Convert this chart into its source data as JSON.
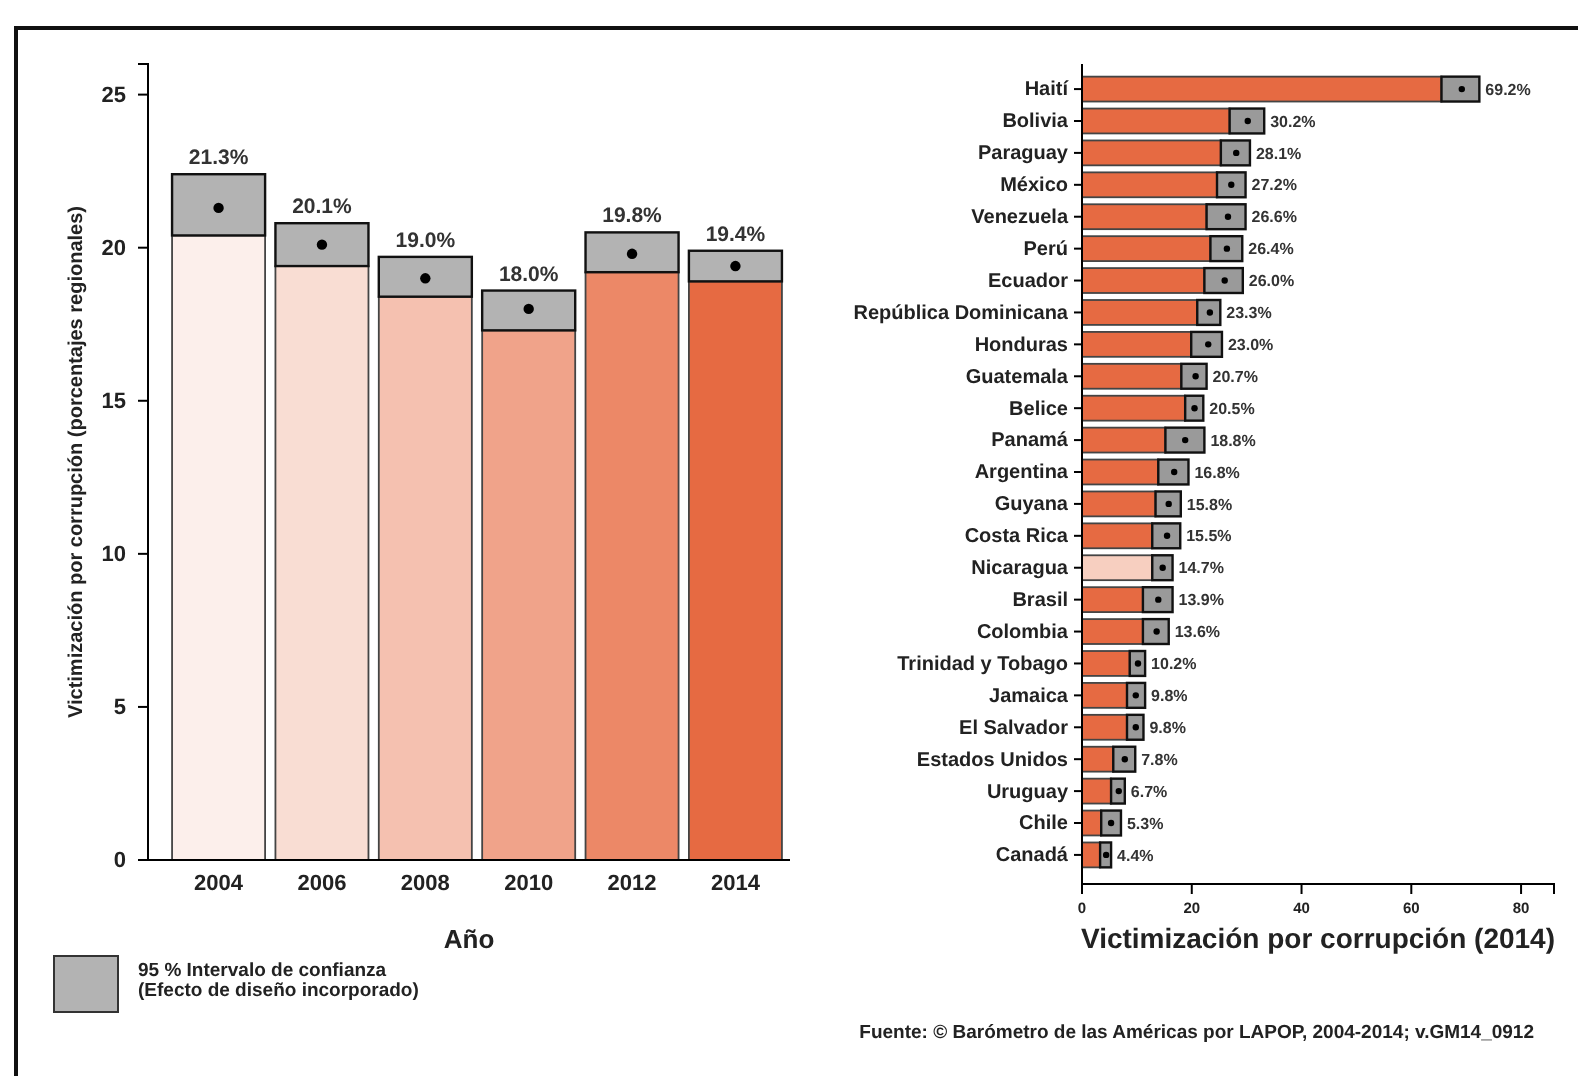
{
  "chart_data": [
    {
      "type": "bar",
      "stacked": true,
      "xlabel": "Año",
      "ylabel": "Victimización por corrupción (porcentajes regionales)",
      "categories": [
        "2004",
        "2006",
        "2008",
        "2010",
        "2012",
        "2014"
      ],
      "series": [
        {
          "colors": [
            "#fcefeb",
            "#f9ddd3",
            "#f5c1b0",
            "#f0a38a",
            "#ec8867",
            "#e66a42"
          ],
          "values": [
            20.4,
            19.4,
            18.4,
            17.3,
            19.2,
            18.9
          ]
        },
        {
          "name": "95 % Intervalo de confianza\n(Efecto de diseño incorporado)",
          "color": "#b3b3b3",
          "values": [
            2.0,
            1.4,
            1.3,
            1.3,
            1.3,
            1.0
          ]
        },
        {
          "type": "scatter",
          "color": "#000000",
          "values": [
            21.3,
            20.1,
            19.0,
            18.0,
            19.8,
            19.4
          ],
          "value_labels": [
            "21.3%",
            "20.1%",
            "19.0%",
            "18.0%",
            "19.8%",
            "19.4%"
          ]
        }
      ],
      "marker": "circle",
      "legend": "bottom left",
      "ylim": [
        0,
        26
      ],
      "yticks": [
        0,
        5,
        10,
        15,
        20,
        25
      ]
    },
    {
      "type": "bar",
      "stacked": true,
      "orientation": "horizontal",
      "xlabel": "Victimización por corrupción (2014)",
      "categories": [
        "Haití",
        "Bolivia",
        "Paraguay",
        "México",
        "Venezuela",
        "Perú",
        "Ecuador",
        "República Dominicana",
        "Honduras",
        "Guatemala",
        "Belice",
        "Panamá",
        "Argentina",
        "Guyana",
        "Costa Rica",
        "Nicaragua",
        "Brasil",
        "Colombia",
        "Trinidad y Tobago",
        "Jamaica",
        "El Salvador",
        "Estados Unidos",
        "Uruguay",
        "Chile",
        "Canadá"
      ],
      "series": [
        {
          "colors": [
            "#e66a42",
            "#e66a42",
            "#e66a42",
            "#e66a42",
            "#e66a42",
            "#e66a42",
            "#e66a42",
            "#e66a42",
            "#e66a42",
            "#e66a42",
            "#e66a42",
            "#e66a42",
            "#e66a42",
            "#e66a42",
            "#e66a42",
            "#f7cfc0",
            "#e66a42",
            "#e66a42",
            "#e66a42",
            "#e66a42",
            "#e66a42",
            "#e66a42",
            "#e66a42",
            "#e66a42",
            "#e66a42"
          ],
          "values": [
            65.5,
            26.9,
            25.3,
            24.6,
            22.7,
            23.4,
            22.3,
            21.0,
            19.9,
            18.1,
            18.8,
            15.2,
            13.9,
            13.4,
            12.8,
            12.8,
            11.1,
            11.1,
            8.7,
            8.2,
            8.2,
            5.7,
            5.3,
            3.5,
            3.3
          ]
        },
        {
          "color": "#9a9a9a",
          "values": [
            6.9,
            6.3,
            5.3,
            5.2,
            7.1,
            5.8,
            7.0,
            4.2,
            5.6,
            4.6,
            3.3,
            7.1,
            5.5,
            4.6,
            5.1,
            3.7,
            5.4,
            4.7,
            2.8,
            3.3,
            3.0,
            4.0,
            2.5,
            3.6,
            2.0
          ]
        },
        {
          "type": "scatter",
          "color": "#000000",
          "x": [
            "Haití",
            "Bolivia",
            "Paraguay",
            "México",
            "Venezuela",
            "Perú",
            "Ecuador",
            "República Dominicana",
            "Honduras",
            "Guatemala",
            "Belice",
            "Panamá",
            "Argentina",
            "Guyana",
            "Costa Rica",
            "Nicaragua",
            "Brasil",
            "Colombia",
            "Trinidad y Tobago",
            "Jamaica",
            "El Salvador",
            "Estados Unidos",
            "Uruguay",
            "Chile",
            "Canadá"
          ],
          "values": [
            69.2,
            30.2,
            28.1,
            27.2,
            26.6,
            26.4,
            26.0,
            23.3,
            23.0,
            20.7,
            20.5,
            18.8,
            16.8,
            15.8,
            15.5,
            14.7,
            13.9,
            13.6,
            10.2,
            9.8,
            9.8,
            7.8,
            6.7,
            5.3,
            4.4
          ],
          "value_labels": [
            "69.2%",
            "30.2%",
            "28.1%",
            "27.2%",
            "26.6%",
            "26.4%",
            "26.0%",
            "23.3%",
            "23.0%",
            "20.7%",
            "20.5%",
            "18.8%",
            "16.8%",
            "15.8%",
            "15.5%",
            "14.7%",
            "13.9%",
            "13.6%",
            "10.2%",
            "9.8%",
            "9.8%",
            "7.8%",
            "6.7%",
            "5.3%",
            "4.4%"
          ]
        }
      ],
      "marker": "circle",
      "xlim": [
        0,
        86
      ],
      "xticks": [
        0,
        20,
        40,
        60,
        80
      ],
      "annotations": [
        "Fuente: © Barómetro de las Américas por LAPOP, 2004-2014; v.GM14_0912"
      ]
    }
  ]
}
